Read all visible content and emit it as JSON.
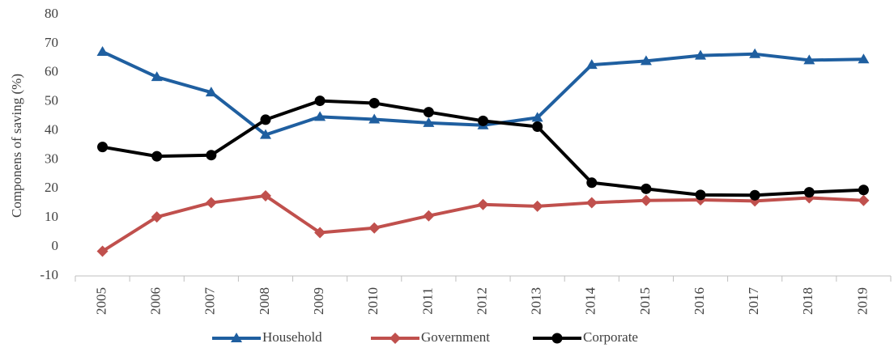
{
  "chart_data": {
    "type": "line",
    "y_label": "Componens of saving (%)",
    "categories": [
      "2005",
      "2006",
      "2007",
      "2008",
      "2009",
      "2010",
      "2011",
      "2012",
      "2013",
      "2014",
      "2015",
      "2016",
      "2017",
      "2018",
      "2019"
    ],
    "series": [
      {
        "name": "Household",
        "color": "#1f5fa0",
        "marker": "triangle",
        "values": [
          67.2,
          58.5,
          53.2,
          38.6,
          44.8,
          43.9,
          42.7,
          41.9,
          44.5,
          62.7,
          64.0,
          65.9,
          66.4,
          64.3,
          64.6
        ]
      },
      {
        "name": "Government",
        "color": "#c0504d",
        "marker": "diamond",
        "values": [
          -1.5,
          10.3,
          15.2,
          17.6,
          4.9,
          6.5,
          10.7,
          14.6,
          14.0,
          15.2,
          16.0,
          16.2,
          15.8,
          16.9,
          16.0
        ]
      },
      {
        "name": "Corporate",
        "color": "#000000",
        "marker": "circle",
        "values": [
          34.4,
          31.2,
          31.6,
          43.8,
          50.3,
          49.5,
          46.4,
          43.4,
          41.4,
          22.1,
          20.0,
          17.9,
          17.8,
          18.8,
          19.6
        ]
      }
    ],
    "ylim": [
      -10,
      80
    ],
    "yticks": [
      -10,
      0,
      10,
      20,
      30,
      40,
      50,
      60,
      70,
      80
    ],
    "grid": false,
    "legend": "bottom"
  }
}
